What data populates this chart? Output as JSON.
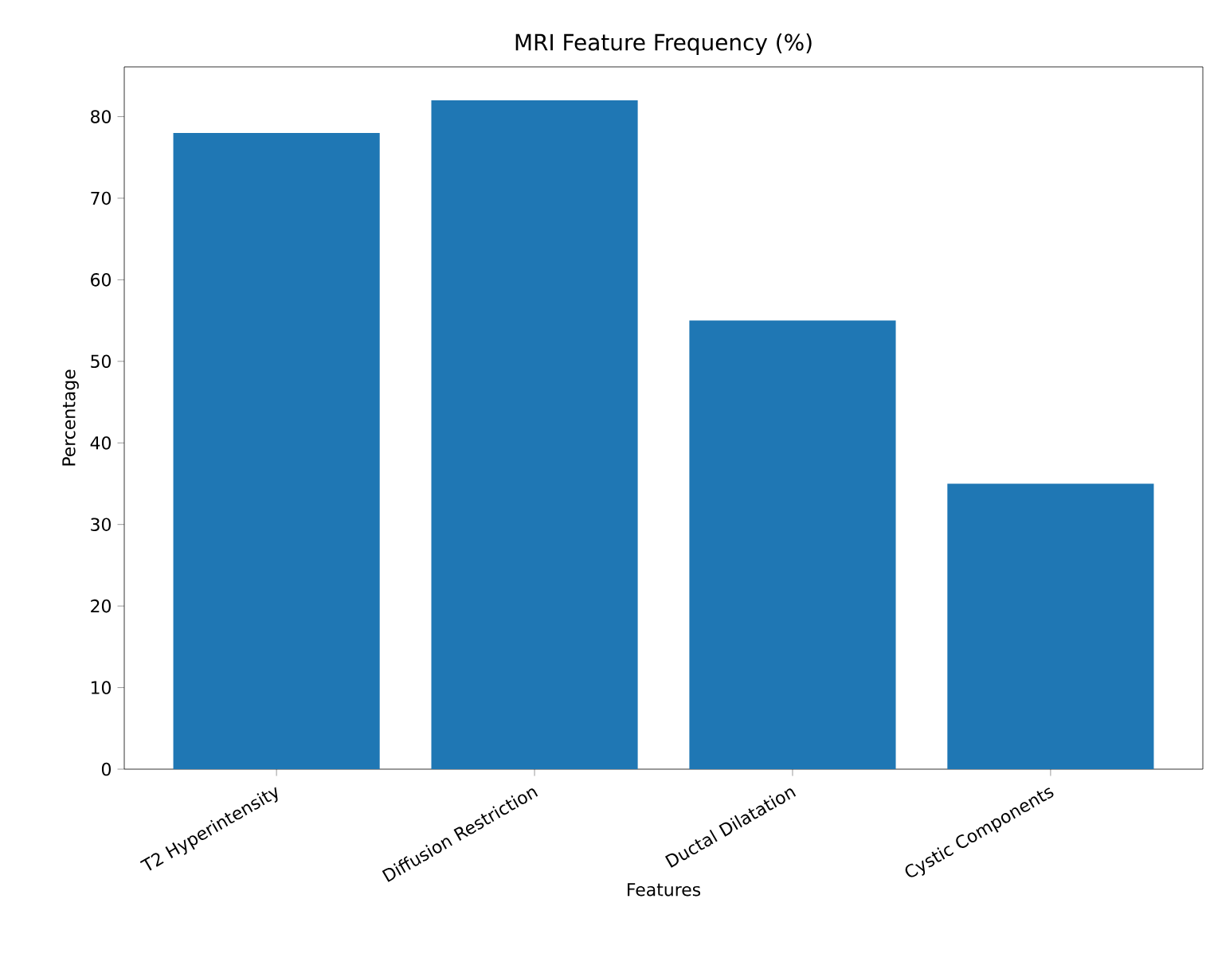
{
  "chart_data": {
    "type": "bar",
    "title": "MRI Feature Frequency (%)",
    "xlabel": "Features",
    "ylabel": "Percentage",
    "categories": [
      "T2 Hyperintensity",
      "Diffusion Restriction",
      "Ductal Dilatation",
      "Cystic Components"
    ],
    "values": [
      78,
      82,
      55,
      35
    ],
    "color": "#1f77b4",
    "ylim": [
      0,
      86.1
    ],
    "yticks": [
      0,
      10,
      20,
      30,
      40,
      50,
      60,
      70,
      80
    ],
    "grid": false
  }
}
